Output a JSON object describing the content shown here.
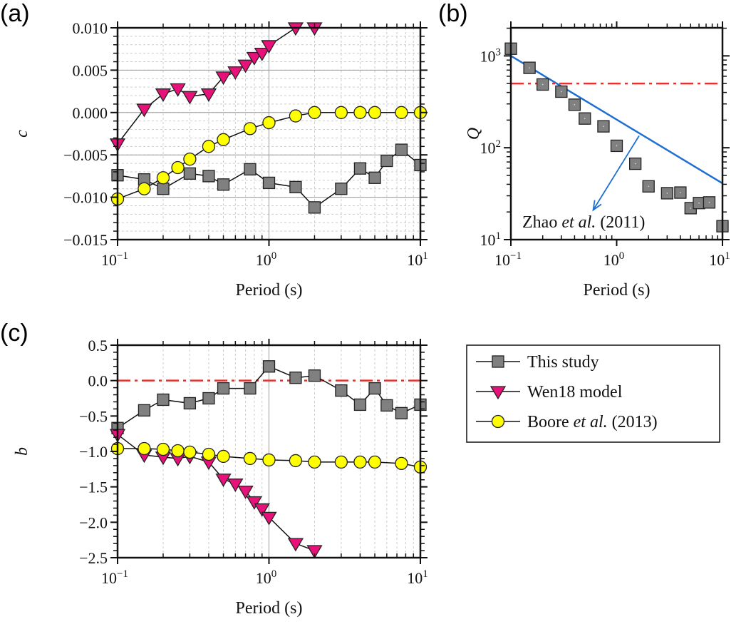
{
  "chart_data": [
    {
      "panel_label": "(a)",
      "type": "line",
      "xlabel": "Period (s)",
      "ylabel": "c",
      "x_scale": "log",
      "xlim": [
        0.1,
        10
      ],
      "ylim": [
        -0.015,
        0.01
      ],
      "x_ticks": [
        "10^-1",
        "10^0",
        "10^1"
      ],
      "y_ticks": [
        "0.010",
        "0.005",
        "0.000",
        "−0.005",
        "−0.010",
        "−0.015"
      ],
      "y_tick_values": [
        0.01,
        0.005,
        0.0,
        -0.005,
        -0.01,
        -0.015
      ],
      "grid": true,
      "series": [
        {
          "name": "This study",
          "marker": "square",
          "color": "#808080",
          "x": [
            0.1,
            0.15,
            0.2,
            0.3,
            0.4,
            0.5,
            0.75,
            1.0,
            1.5,
            2,
            3,
            4,
            5,
            6,
            7.5,
            10
          ],
          "y": [
            -0.0074,
            -0.0079,
            -0.009,
            -0.0072,
            -0.0075,
            -0.0085,
            -0.0067,
            -0.0083,
            -0.0088,
            -0.0112,
            -0.009,
            -0.0066,
            -0.0077,
            -0.0057,
            -0.0044,
            -0.0062
          ]
        },
        {
          "name": "Wen18 model",
          "marker": "triangle-down",
          "color": "#e8117a",
          "x": [
            0.1,
            0.15,
            0.2,
            0.25,
            0.3,
            0.4,
            0.5,
            0.6,
            0.7,
            0.8,
            0.9,
            1.0,
            1.5,
            2.0
          ],
          "y": [
            -0.0037,
            0.0004,
            0.0022,
            0.0028,
            0.0019,
            0.0022,
            0.0042,
            0.0048,
            0.0056,
            0.0065,
            0.007,
            0.0079,
            0.01,
            0.01
          ]
        },
        {
          "name": "Boore et al. (2013)",
          "marker": "circle",
          "color": "#ffff00",
          "x": [
            0.1,
            0.15,
            0.2,
            0.25,
            0.3,
            0.4,
            0.5,
            0.75,
            1.0,
            1.5,
            2,
            3,
            4,
            5,
            7.5,
            10
          ],
          "y": [
            -0.0102,
            -0.009,
            -0.0077,
            -0.0065,
            -0.0055,
            -0.004,
            -0.0032,
            -0.0019,
            -0.0012,
            -0.0004,
            0.0,
            0.0,
            0.0,
            0.0,
            0.0,
            0.0
          ]
        }
      ]
    },
    {
      "panel_label": "(b)",
      "type": "scatter",
      "xlabel": "Period (s)",
      "ylabel": "Q",
      "x_scale": "log",
      "y_scale": "log",
      "xlim": [
        0.1,
        10
      ],
      "ylim": [
        10,
        2020
      ],
      "x_ticks": [
        "10^-1",
        "10^0",
        "10^1"
      ],
      "y_ticks": [
        "10^3",
        "10^2",
        "10^1"
      ],
      "y_tick_values": [
        1000,
        100,
        10
      ],
      "grid": false,
      "series": [
        {
          "name": "This study",
          "marker": "square",
          "color": "#808080",
          "x": [
            0.1,
            0.15,
            0.2,
            0.3,
            0.4,
            0.5,
            0.75,
            1.0,
            1.5,
            2,
            3,
            4,
            5,
            6,
            7.5,
            10
          ],
          "y": [
            1197,
            741,
            488,
            408,
            294,
            208,
            171,
            105,
            67,
            38,
            32,
            32.5,
            22,
            25,
            25.4,
            14
          ]
        }
      ],
      "reference_lines": [
        {
          "label": "Zhao et al. (2011)",
          "style": "solid",
          "color": "#1f6fd1",
          "x": [
            0.1,
            10
          ],
          "y": [
            1000,
            41
          ]
        },
        {
          "style": "dash-dot",
          "color": "#e8312f",
          "y": 500
        }
      ],
      "annotation": {
        "pre": "Zhao ",
        "italic": "et al.",
        "post": " (2011)",
        "arrow_from": [
          1.63,
          135
        ],
        "arrow_to": [
          0.6,
          21
        ]
      }
    },
    {
      "panel_label": "(c)",
      "type": "line",
      "xlabel": "Period (s)",
      "ylabel": "b",
      "x_scale": "log",
      "xlim": [
        0.1,
        10
      ],
      "ylim": [
        -2.5,
        0.5
      ],
      "x_ticks": [
        "10^-1",
        "10^0",
        "10^1"
      ],
      "y_ticks": [
        "0.5",
        "0.0",
        "−0.5",
        "−1.0",
        "−1.5",
        "−2.0",
        "−2.5"
      ],
      "y_tick_values": [
        0.5,
        0.0,
        -0.5,
        -1.0,
        -1.5,
        -2.0,
        -2.5
      ],
      "grid": "x-minor",
      "reference_lines": [
        {
          "style": "dash-dot",
          "color": "#e8312f",
          "y": 0
        }
      ],
      "series": [
        {
          "name": "This study",
          "marker": "square",
          "color": "#808080",
          "x": [
            0.1,
            0.15,
            0.2,
            0.3,
            0.4,
            0.5,
            0.75,
            1.0,
            1.5,
            2,
            3,
            4,
            5,
            6,
            7.5,
            10
          ],
          "y": [
            -0.67,
            -0.42,
            -0.27,
            -0.32,
            -0.25,
            -0.11,
            -0.11,
            0.2,
            0.04,
            0.07,
            -0.14,
            -0.34,
            -0.11,
            -0.35,
            -0.46,
            -0.34
          ]
        },
        {
          "name": "Wen18 model",
          "marker": "triangle-down",
          "color": "#e8117a",
          "x": [
            0.1,
            0.15,
            0.2,
            0.25,
            0.3,
            0.4,
            0.5,
            0.6,
            0.7,
            0.8,
            0.9,
            1.0,
            1.5,
            2.0
          ],
          "y": [
            -0.76,
            -1.05,
            -1.08,
            -1.1,
            -1.07,
            -1.15,
            -1.39,
            -1.46,
            -1.56,
            -1.71,
            -1.81,
            -1.93,
            -2.3,
            -2.4
          ]
        },
        {
          "name": "Boore et al. (2013)",
          "marker": "circle",
          "color": "#ffff00",
          "x": [
            0.1,
            0.15,
            0.2,
            0.25,
            0.3,
            0.4,
            0.5,
            0.75,
            1.0,
            1.5,
            2,
            3,
            4,
            5,
            7.5,
            10
          ],
          "y": [
            -0.96,
            -0.96,
            -0.97,
            -0.99,
            -1.01,
            -1.04,
            -1.07,
            -1.1,
            -1.12,
            -1.13,
            -1.15,
            -1.15,
            -1.15,
            -1.15,
            -1.17,
            -1.22
          ]
        }
      ]
    }
  ],
  "legend": {
    "placement": "right of panel (c)",
    "items": [
      {
        "marker": "square",
        "color": "#808080",
        "pre": "This study",
        "italic": "",
        "post": ""
      },
      {
        "marker": "triangle-down",
        "color": "#e8117a",
        "pre": "Wen18 model",
        "italic": "",
        "post": ""
      },
      {
        "marker": "circle",
        "color": "#ffff00",
        "pre": "Boore ",
        "italic": "et al.",
        "post": " (2013)"
      }
    ]
  }
}
